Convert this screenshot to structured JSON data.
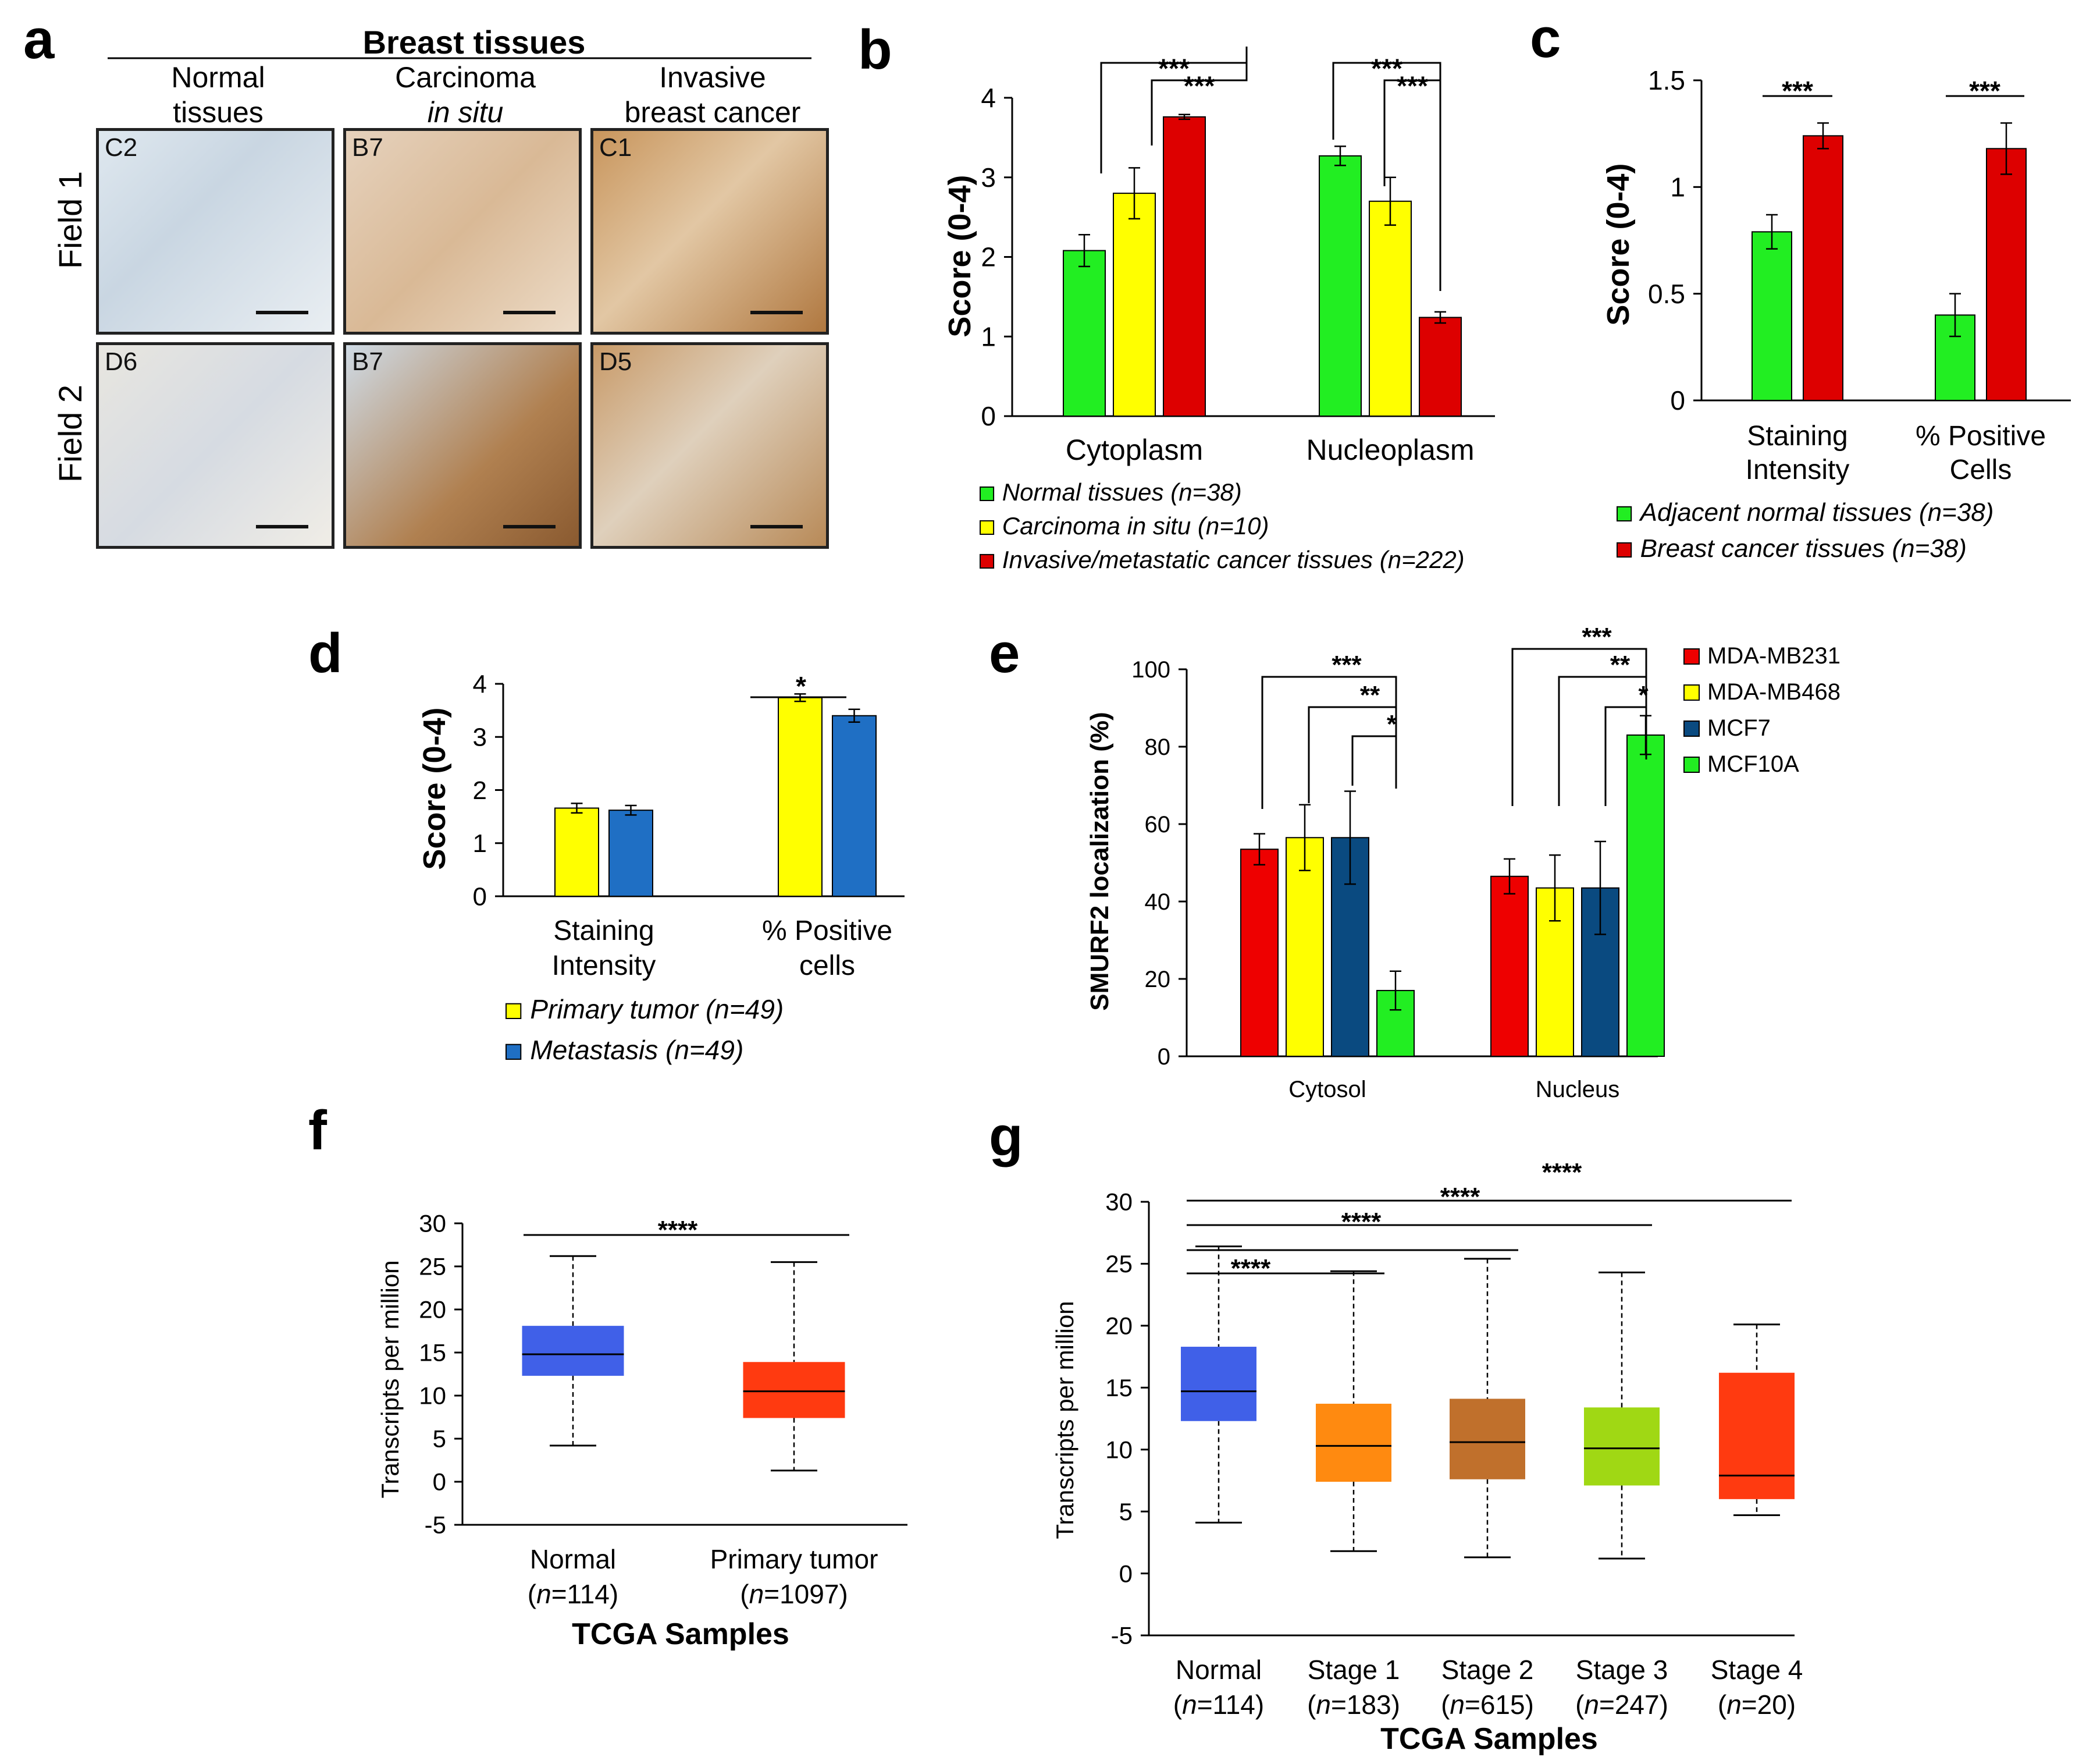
{
  "figure_panels": [
    "a",
    "b",
    "c",
    "d",
    "e",
    "f",
    "g"
  ],
  "panel_a": {
    "header": "Breast tissues",
    "columns": [
      {
        "line1": "Normal",
        "line2": "tissues"
      },
      {
        "line1": "Carcinoma",
        "line2": "in situ"
      },
      {
        "line1": "Invasive",
        "line2": "breast cancer"
      }
    ],
    "rows": [
      "Field 1",
      "Field 2"
    ],
    "codes": [
      [
        "C2",
        "B7",
        "C1"
      ],
      [
        "D6",
        "B7",
        "D5"
      ]
    ]
  },
  "chart_data": [
    {
      "id": "b",
      "type": "bar",
      "ylabel": "Score (0-4)",
      "ylim": [
        0,
        4
      ],
      "yticks": [
        "0",
        "1",
        "2",
        "3",
        "4"
      ],
      "categories": [
        "Cytoplasm",
        "Nucleoplasm"
      ],
      "series": [
        {
          "name": "Normal tissues (n=38)",
          "color": "#22ee22",
          "values": [
            2.08,
            3.27
          ],
          "errors": [
            0.2,
            0.12
          ]
        },
        {
          "name": "Carcinoma in situ (n=10)",
          "color": "#ffff00",
          "values": [
            2.8,
            2.7
          ],
          "errors": [
            0.32,
            0.3
          ]
        },
        {
          "name": "Invasive/metastatic cancer tissues (n=222)",
          "color": "#dd0000",
          "values": [
            3.76,
            1.24
          ],
          "errors": [
            0.03,
            0.07
          ]
        }
      ],
      "significance": [
        "***",
        "***",
        "***",
        "***"
      ]
    },
    {
      "id": "c",
      "type": "bar",
      "ylabel": "Score (0-4)",
      "ylim": [
        0,
        1.5
      ],
      "yticks": [
        "0",
        "0.5",
        "1",
        "1.5"
      ],
      "categories": [
        [
          "Staining",
          "Intensity"
        ],
        [
          "% Positive",
          "Cells"
        ]
      ],
      "series": [
        {
          "name": "Adjacent normal tissues (n=38)",
          "color": "#22ee22",
          "values": [
            0.79,
            0.4
          ],
          "errors": [
            0.08,
            0.1
          ]
        },
        {
          "name": "Breast cancer tissues (n=38)",
          "color": "#dd0000",
          "values": [
            1.24,
            1.18
          ],
          "errors": [
            0.06,
            0.12
          ]
        }
      ],
      "significance": [
        "***",
        "***"
      ]
    },
    {
      "id": "d",
      "type": "bar",
      "ylabel": "Score (0-4)",
      "ylim": [
        0,
        4
      ],
      "yticks": [
        "0",
        "1",
        "2",
        "3",
        "4"
      ],
      "categories": [
        [
          "Staining",
          "Intensity"
        ],
        [
          "% Positive",
          "cells"
        ]
      ],
      "series": [
        {
          "name": "Primary tumor (n=49)",
          "color": "#ffff00",
          "values": [
            1.66,
            3.74
          ],
          "errors": [
            0.09,
            0.07
          ]
        },
        {
          "name": "Metastasis (n=49)",
          "color": "#1f6fc4",
          "values": [
            1.62,
            3.4
          ],
          "errors": [
            0.09,
            0.12
          ]
        }
      ],
      "significance": [
        "*"
      ]
    },
    {
      "id": "e",
      "type": "bar",
      "ylabel": "SMURF2 localization (%)",
      "ylim": [
        0,
        100
      ],
      "yticks": [
        "0",
        "20",
        "40",
        "60",
        "80",
        "100"
      ],
      "categories": [
        "Cytosol",
        "Nucleus"
      ],
      "series": [
        {
          "name": "MDA-MB231",
          "color": "#ee0000",
          "values": [
            53.5,
            46.5
          ],
          "errors": [
            4,
            4.5
          ]
        },
        {
          "name": "MDA-MB468",
          "color": "#ffff00",
          "values": [
            56.5,
            43.5
          ],
          "errors": [
            8.5,
            8.5
          ]
        },
        {
          "name": "MCF7",
          "color": "#0a4a80",
          "values": [
            56.5,
            43.5
          ],
          "errors": [
            12,
            12
          ]
        },
        {
          "name": "MCF10A",
          "color": "#22ee22",
          "values": [
            17,
            83
          ],
          "errors": [
            5,
            5
          ]
        }
      ],
      "significance": [
        "***",
        "**",
        "*",
        "***",
        "**",
        "*"
      ]
    },
    {
      "id": "f",
      "type": "box",
      "ylabel": "Transcripts per million",
      "xlabel": "TCGA Samples",
      "ylim": [
        -5,
        30
      ],
      "yticks": [
        "-5",
        "0",
        "5",
        "10",
        "15",
        "20",
        "25",
        "30"
      ],
      "groups": [
        {
          "name": "Normal",
          "n": "114",
          "color": "#4060e8",
          "min": 4.2,
          "q1": 12.3,
          "median": 14.8,
          "q3": 18.1,
          "max": 26.2
        },
        {
          "name": "Primary tumor",
          "n": "1097",
          "color": "#ff3a10",
          "min": 1.3,
          "q1": 7.4,
          "median": 10.5,
          "q3": 13.9,
          "max": 25.5
        }
      ],
      "significance": [
        "****"
      ]
    },
    {
      "id": "g",
      "type": "box",
      "ylabel": "Transcripts per million",
      "xlabel": "TCGA Samples",
      "ylim": [
        -5,
        30
      ],
      "yticks": [
        "-5",
        "0",
        "5",
        "10",
        "15",
        "20",
        "25",
        "30"
      ],
      "groups": [
        {
          "name": "Normal",
          "n": "114",
          "color": "#4060e8",
          "min": 4.1,
          "q1": 12.3,
          "median": 14.7,
          "q3": 18.3,
          "max": 26.4
        },
        {
          "name": "Stage 1",
          "n": "183",
          "color": "#ff8a10",
          "min": 1.8,
          "q1": 7.4,
          "median": 10.3,
          "q3": 13.7,
          "max": 24.4
        },
        {
          "name": "Stage 2",
          "n": "615",
          "color": "#c0702c",
          "min": 1.3,
          "q1": 7.6,
          "median": 10.6,
          "q3": 14.1,
          "max": 25.4
        },
        {
          "name": "Stage 3",
          "n": "247",
          "color": "#a0d814",
          "min": 1.2,
          "q1": 7.1,
          "median": 10.1,
          "q3": 13.4,
          "max": 24.3
        },
        {
          "name": "Stage 4",
          "n": "20",
          "color": "#ff3a10",
          "min": 4.7,
          "q1": 6.0,
          "median": 7.9,
          "q3": 16.2,
          "max": 20.1
        }
      ],
      "significance": [
        "****",
        "****",
        "****",
        "****"
      ]
    }
  ]
}
